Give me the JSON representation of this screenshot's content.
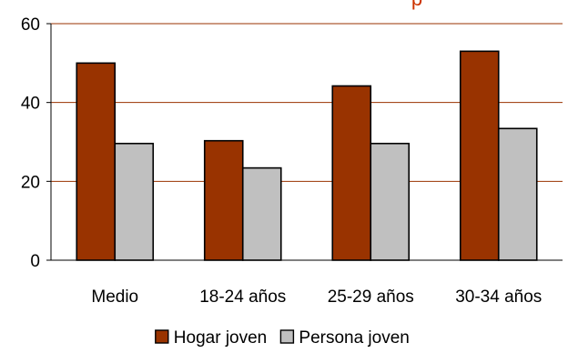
{
  "chart_data": {
    "type": "bar",
    "title": "p",
    "categories": [
      "Medio",
      "18-24 años",
      "25-29 años",
      "30-34 años"
    ],
    "series": [
      {
        "name": "Hogar joven",
        "values": [
          50,
          30.3,
          44.2,
          53
        ],
        "color": "#993300"
      },
      {
        "name": "Persona joven",
        "values": [
          29.6,
          23.4,
          29.6,
          33.4
        ],
        "color": "#c0c0c0"
      }
    ],
    "ylim": [
      0,
      60
    ],
    "yticks": [
      0,
      20,
      40,
      60
    ],
    "grid": true,
    "gridline_color": "#993300",
    "legend_position": "bottom",
    "xlabel": "",
    "ylabel": ""
  }
}
